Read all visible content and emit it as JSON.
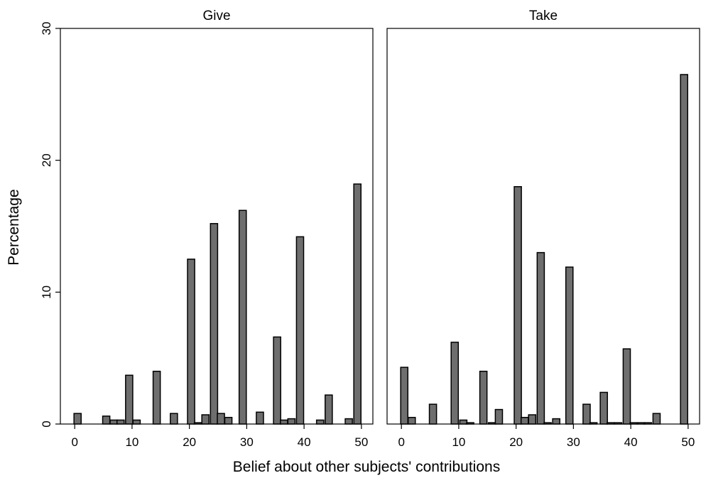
{
  "chart_data": {
    "type": "bar",
    "ylabel": "Percentage",
    "xlabel": "Belief about other subjects' contributions",
    "ylim": [
      0,
      30
    ],
    "xlim": [
      -2.5,
      52
    ],
    "bin_width": 1.25,
    "y_ticks": [
      {
        "value": 0,
        "label": "0"
      },
      {
        "value": 10,
        "label": "10"
      },
      {
        "value": 20,
        "label": "20"
      },
      {
        "value": 30,
        "label": "30"
      }
    ],
    "x_ticks": [
      {
        "value": 0,
        "label": "0"
      },
      {
        "value": 10,
        "label": "10"
      },
      {
        "value": 20,
        "label": "20"
      },
      {
        "value": 30,
        "label": "30"
      },
      {
        "value": 40,
        "label": "40"
      },
      {
        "value": 50,
        "label": "50"
      }
    ],
    "colors": {
      "bar_fill": "#6e6e6e",
      "bar_stroke": "#000000"
    },
    "panels": [
      {
        "title": "Give",
        "bars": [
          {
            "x": 0.5,
            "y": 0.8
          },
          {
            "x": 5.5,
            "y": 0.6
          },
          {
            "x": 6.8,
            "y": 0.3
          },
          {
            "x": 8.0,
            "y": 0.3
          },
          {
            "x": 9.5,
            "y": 3.7
          },
          {
            "x": 10.8,
            "y": 0.3
          },
          {
            "x": 14.3,
            "y": 4.0
          },
          {
            "x": 17.3,
            "y": 0.8
          },
          {
            "x": 20.3,
            "y": 12.5
          },
          {
            "x": 21.5,
            "y": 0.1
          },
          {
            "x": 22.8,
            "y": 0.7
          },
          {
            "x": 24.3,
            "y": 15.2
          },
          {
            "x": 25.5,
            "y": 0.8
          },
          {
            "x": 26.8,
            "y": 0.5
          },
          {
            "x": 29.3,
            "y": 16.2
          },
          {
            "x": 32.3,
            "y": 0.9
          },
          {
            "x": 35.3,
            "y": 6.6
          },
          {
            "x": 36.5,
            "y": 0.3
          },
          {
            "x": 37.8,
            "y": 0.4
          },
          {
            "x": 39.3,
            "y": 14.2
          },
          {
            "x": 42.8,
            "y": 0.3
          },
          {
            "x": 44.3,
            "y": 2.2
          },
          {
            "x": 47.8,
            "y": 0.4
          },
          {
            "x": 49.3,
            "y": 18.2
          }
        ]
      },
      {
        "title": "Take",
        "bars": [
          {
            "x": 0.5,
            "y": 4.3
          },
          {
            "x": 1.8,
            "y": 0.5
          },
          {
            "x": 5.5,
            "y": 1.5
          },
          {
            "x": 9.3,
            "y": 6.2
          },
          {
            "x": 10.8,
            "y": 0.3
          },
          {
            "x": 12.0,
            "y": 0.1
          },
          {
            "x": 14.3,
            "y": 4.0
          },
          {
            "x": 15.8,
            "y": 0.1
          },
          {
            "x": 17.0,
            "y": 1.1
          },
          {
            "x": 20.3,
            "y": 18.0
          },
          {
            "x": 21.5,
            "y": 0.5
          },
          {
            "x": 22.8,
            "y": 0.7
          },
          {
            "x": 24.3,
            "y": 13.0
          },
          {
            "x": 25.5,
            "y": 0.1
          },
          {
            "x": 27.0,
            "y": 0.4
          },
          {
            "x": 29.3,
            "y": 11.9
          },
          {
            "x": 32.3,
            "y": 1.5
          },
          {
            "x": 33.5,
            "y": 0.1
          },
          {
            "x": 35.3,
            "y": 2.4
          },
          {
            "x": 36.5,
            "y": 0.1
          },
          {
            "x": 37.8,
            "y": 0.1
          },
          {
            "x": 39.3,
            "y": 5.7
          },
          {
            "x": 40.5,
            "y": 0.1
          },
          {
            "x": 41.8,
            "y": 0.1
          },
          {
            "x": 43.0,
            "y": 0.1
          },
          {
            "x": 44.5,
            "y": 0.8
          },
          {
            "x": 49.3,
            "y": 26.5
          }
        ]
      }
    ]
  }
}
